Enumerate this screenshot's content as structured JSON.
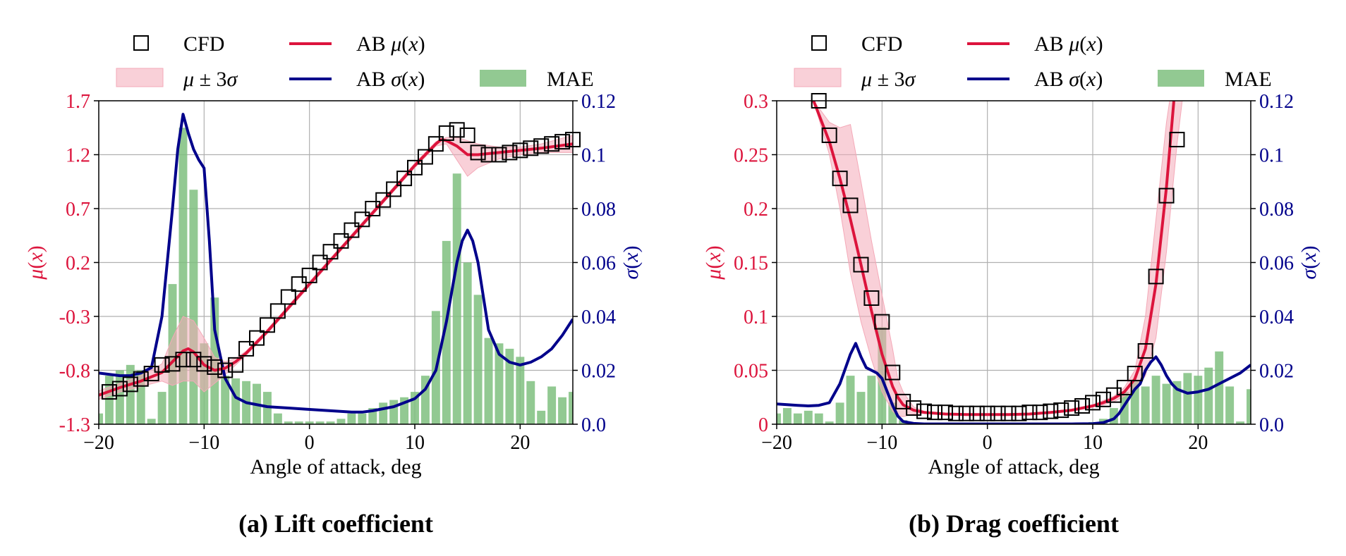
{
  "colors": {
    "mu": "#DC143C",
    "sigma": "#00008B",
    "band": "#F4A9B8",
    "mae": "#7FBF7F",
    "cfd": "#000000",
    "grid": "#b0b0b0"
  },
  "legend": {
    "cfd": "CFD",
    "band": "μ ± 3σ",
    "ab_mu": "AB μ(x)",
    "ab_sigma": "AB σ(x)",
    "mae": "MAE"
  },
  "chart_data": [
    {
      "type": "line",
      "caption": "(a) Lift coefficient",
      "xlabel": "Angle of attack, deg",
      "ylabel_left": "μ(x)",
      "ylabel_right": "σ(x)",
      "xlim": [
        -20,
        25
      ],
      "ylim_left": [
        -1.3,
        1.7
      ],
      "ylim_right": [
        0,
        0.12
      ],
      "xticks": [
        -20,
        -10,
        0,
        10,
        20
      ],
      "xtick_labels": [
        "−20",
        "−10",
        "0",
        "10",
        "20"
      ],
      "yticks_left": [
        -1.3,
        -0.8,
        -0.3,
        0.2,
        0.7,
        1.2,
        1.7
      ],
      "ytick_labels_left": [
        "-1.3",
        "-0.8",
        "-0.3",
        "0.2",
        "0.7",
        "1.2",
        "1.7"
      ],
      "yticks_right": [
        0,
        0.02,
        0.04,
        0.06,
        0.08,
        0.1,
        0.12
      ],
      "ytick_labels_right": [
        "0.0",
        "0.02",
        "0.04",
        "0.06",
        "0.08",
        "0.1",
        "0.12"
      ],
      "grid": true,
      "legend_position": "top",
      "series": [
        {
          "name": "CFD",
          "kind": "markers",
          "axis": "left",
          "x": [
            -19,
            -18,
            -17,
            -16,
            -15,
            -14,
            -13,
            -12,
            -11,
            -10,
            -9,
            -8,
            -7,
            -6,
            -5,
            -4,
            -3,
            -2,
            -1,
            0,
            1,
            2,
            3,
            4,
            5,
            6,
            7,
            8,
            9,
            10,
            11,
            12,
            13,
            14,
            15,
            16,
            17,
            18,
            19,
            20,
            21,
            22,
            23,
            24,
            25
          ],
          "y": [
            -1.0,
            -0.97,
            -0.93,
            -0.88,
            -0.83,
            -0.75,
            -0.74,
            -0.7,
            -0.7,
            -0.74,
            -0.77,
            -0.8,
            -0.75,
            -0.6,
            -0.5,
            -0.38,
            -0.25,
            -0.12,
            0.0,
            0.08,
            0.2,
            0.3,
            0.4,
            0.5,
            0.6,
            0.7,
            0.78,
            0.88,
            0.98,
            1.08,
            1.18,
            1.3,
            1.4,
            1.43,
            1.38,
            1.22,
            1.2,
            1.2,
            1.22,
            1.24,
            1.26,
            1.28,
            1.3,
            1.32,
            1.34
          ]
        },
        {
          "name": "AB μ(x)",
          "kind": "line",
          "axis": "left",
          "x": [
            -20,
            -18,
            -16,
            -14,
            -13,
            -12,
            -11.5,
            -11,
            -10,
            -9,
            -8,
            -7,
            -6,
            -4,
            -2,
            0,
            2,
            4,
            6,
            8,
            10,
            11,
            12,
            12.5,
            13,
            14,
            15,
            16,
            18,
            20,
            22,
            25
          ],
          "y": [
            -1.03,
            -0.96,
            -0.9,
            -0.82,
            -0.72,
            -0.62,
            -0.6,
            -0.63,
            -0.75,
            -0.8,
            -0.78,
            -0.72,
            -0.64,
            -0.44,
            -0.22,
            0.0,
            0.22,
            0.44,
            0.66,
            0.88,
            1.1,
            1.2,
            1.3,
            1.34,
            1.33,
            1.28,
            1.2,
            1.2,
            1.22,
            1.24,
            1.26,
            1.3
          ]
        },
        {
          "name": "μ ± 3σ upper",
          "kind": "band_upper",
          "axis": "left",
          "x": [
            -20,
            -18,
            -16,
            -14,
            -13,
            -12,
            -11,
            -10,
            -9,
            -8,
            -7,
            -6,
            -4,
            -2,
            0,
            2,
            4,
            6,
            8,
            10,
            11,
            12,
            13,
            14,
            15,
            16,
            18,
            20,
            22,
            25
          ],
          "y": [
            -0.99,
            -0.92,
            -0.85,
            -0.74,
            -0.5,
            -0.3,
            -0.34,
            -0.5,
            -0.68,
            -0.72,
            -0.69,
            -0.62,
            -0.42,
            -0.2,
            0.02,
            0.24,
            0.46,
            0.68,
            0.9,
            1.12,
            1.22,
            1.32,
            1.36,
            1.36,
            1.33,
            1.3,
            1.27,
            1.27,
            1.3,
            1.38
          ]
        },
        {
          "name": "μ ± 3σ lower",
          "kind": "band_lower",
          "axis": "left",
          "x": [
            -20,
            -18,
            -16,
            -14,
            -13,
            -12,
            -11,
            -10,
            -9,
            -8,
            -7,
            -6,
            -4,
            -2,
            0,
            2,
            4,
            6,
            8,
            10,
            11,
            12,
            13,
            14,
            15,
            16,
            18,
            20,
            22,
            25
          ],
          "y": [
            -1.07,
            -1.0,
            -0.95,
            -0.9,
            -0.94,
            -0.9,
            -0.9,
            -1.0,
            -0.92,
            -0.84,
            -0.75,
            -0.66,
            -0.46,
            -0.24,
            -0.02,
            0.2,
            0.42,
            0.64,
            0.86,
            1.08,
            1.18,
            1.28,
            1.3,
            1.15,
            1.0,
            1.08,
            1.16,
            1.2,
            1.22,
            1.22
          ]
        },
        {
          "name": "AB σ(x)",
          "kind": "line",
          "axis": "right",
          "x": [
            -20,
            -18,
            -17,
            -16,
            -15,
            -14,
            -13,
            -12.5,
            -12,
            -11.5,
            -11,
            -10.5,
            -10,
            -9.5,
            -9,
            -8,
            -7,
            -6,
            -4,
            -2,
            0,
            2,
            4,
            5,
            6,
            8,
            10,
            11,
            12,
            13,
            14,
            14.5,
            15,
            15.5,
            16,
            17,
            18,
            19,
            20,
            21,
            22,
            23,
            24,
            25
          ],
          "y": [
            0.019,
            0.018,
            0.018,
            0.019,
            0.021,
            0.04,
            0.08,
            0.102,
            0.115,
            0.108,
            0.102,
            0.098,
            0.095,
            0.068,
            0.035,
            0.017,
            0.01,
            0.008,
            0.0065,
            0.006,
            0.0055,
            0.005,
            0.0045,
            0.0045,
            0.005,
            0.0065,
            0.0095,
            0.013,
            0.02,
            0.038,
            0.06,
            0.068,
            0.072,
            0.068,
            0.06,
            0.035,
            0.026,
            0.023,
            0.022,
            0.023,
            0.025,
            0.028,
            0.033,
            0.039
          ]
        },
        {
          "name": "MAE",
          "kind": "bars",
          "axis": "right",
          "x": [
            -20,
            -19,
            -18,
            -17,
            -16,
            -15,
            -14,
            -13,
            -12,
            -11,
            -10,
            -9,
            -8,
            -7,
            -6,
            -5,
            -4,
            -3,
            -2,
            -1,
            0,
            1,
            2,
            3,
            4,
            5,
            6,
            7,
            8,
            9,
            10,
            11,
            12,
            13,
            14,
            15,
            16,
            17,
            18,
            19,
            20,
            21,
            22,
            23,
            24,
            25
          ],
          "y": [
            0.004,
            0.018,
            0.02,
            0.022,
            0.02,
            0.002,
            0.012,
            0.052,
            0.11,
            0.087,
            0.03,
            0.047,
            0.018,
            0.017,
            0.016,
            0.015,
            0.012,
            0.004,
            0.001,
            0.001,
            0.001,
            0.001,
            0.001,
            0.002,
            0.004,
            0.004,
            0.006,
            0.008,
            0.009,
            0.01,
            0.012,
            0.018,
            0.042,
            0.068,
            0.093,
            0.06,
            0.048,
            0.032,
            0.03,
            0.028,
            0.025,
            0.016,
            0.005,
            0.014,
            0.01,
            0.012
          ]
        }
      ]
    },
    {
      "type": "line",
      "caption": "(b) Drag coefficient",
      "xlabel": "Angle of attack, deg",
      "ylabel_left": "μ(x)",
      "ylabel_right": "σ(x)",
      "xlim": [
        -20,
        25
      ],
      "ylim_left": [
        0,
        0.3
      ],
      "ylim_right": [
        0,
        0.12
      ],
      "xticks": [
        -20,
        -10,
        0,
        10,
        20
      ],
      "xtick_labels": [
        "−20",
        "−10",
        "0",
        "10",
        "20"
      ],
      "yticks_left": [
        0,
        0.05,
        0.1,
        0.15,
        0.2,
        0.25,
        0.3
      ],
      "ytick_labels_left": [
        "0",
        "0.05",
        "0.1",
        "0.15",
        "0.2",
        "0.25",
        "0.3"
      ],
      "yticks_right": [
        0,
        0.02,
        0.04,
        0.06,
        0.08,
        0.1,
        0.12
      ],
      "ytick_labels_right": [
        "0.0",
        "0.02",
        "0.04",
        "0.06",
        "0.08",
        "0.1",
        "0.12"
      ],
      "grid": true,
      "legend_position": "top",
      "series": [
        {
          "name": "CFD",
          "kind": "markers",
          "axis": "left",
          "x": [
            -16,
            -15,
            -14,
            -13,
            -12,
            -11,
            -10,
            -9,
            -8,
            -7,
            -6,
            -5,
            -4,
            -3,
            -2,
            -1,
            0,
            1,
            2,
            3,
            4,
            5,
            6,
            7,
            8,
            9,
            10,
            11,
            12,
            13,
            14,
            15,
            16,
            17,
            18
          ],
          "y": [
            0.3,
            0.268,
            0.228,
            0.203,
            0.148,
            0.117,
            0.095,
            0.048,
            0.021,
            0.015,
            0.012,
            0.011,
            0.011,
            0.01,
            0.01,
            0.01,
            0.01,
            0.01,
            0.01,
            0.01,
            0.011,
            0.011,
            0.012,
            0.013,
            0.015,
            0.017,
            0.02,
            0.023,
            0.027,
            0.034,
            0.047,
            0.068,
            0.137,
            0.212,
            0.264
          ]
        },
        {
          "name": "AB μ(x)",
          "kind": "line",
          "axis": "left",
          "x": [
            -16.5,
            -15,
            -14,
            -13,
            -12,
            -11,
            -10,
            -9,
            -8.5,
            -8,
            -7,
            -6,
            -4,
            -2,
            0,
            2,
            4,
            6,
            8,
            10,
            11,
            12,
            13,
            14,
            15,
            16,
            17,
            17.7
          ],
          "y": [
            0.3,
            0.262,
            0.228,
            0.19,
            0.148,
            0.105,
            0.065,
            0.035,
            0.025,
            0.018,
            0.013,
            0.011,
            0.0095,
            0.009,
            0.009,
            0.009,
            0.0095,
            0.011,
            0.013,
            0.017,
            0.02,
            0.024,
            0.03,
            0.042,
            0.07,
            0.13,
            0.22,
            0.3
          ]
        },
        {
          "name": "μ ± 3σ upper",
          "kind": "band_upper",
          "axis": "left",
          "x": [
            -16.5,
            -15,
            -14,
            -13,
            -12,
            -11,
            -10,
            -9,
            -8.5,
            -8,
            -7,
            -6,
            -4,
            -2,
            0,
            2,
            4,
            6,
            8,
            10,
            11,
            12,
            13,
            14,
            15,
            16,
            17,
            17.3
          ],
          "y": [
            0.3,
            0.28,
            0.275,
            0.278,
            0.225,
            0.17,
            0.12,
            0.07,
            0.042,
            0.03,
            0.016,
            0.012,
            0.0097,
            0.0092,
            0.0092,
            0.0092,
            0.0097,
            0.0112,
            0.0135,
            0.018,
            0.022,
            0.026,
            0.034,
            0.05,
            0.1,
            0.19,
            0.28,
            0.3
          ]
        },
        {
          "name": "μ ± 3σ lower",
          "kind": "band_lower",
          "axis": "left",
          "x": [
            -16.5,
            -15,
            -14,
            -13,
            -12,
            -11,
            -10,
            -9,
            -8.5,
            -8,
            -7,
            -6,
            -4,
            -2,
            0,
            2,
            4,
            6,
            8,
            10,
            11,
            12,
            13,
            14,
            15,
            16,
            17,
            18,
            18.5
          ],
          "y": [
            0.3,
            0.25,
            0.2,
            0.14,
            0.095,
            0.06,
            0.03,
            0.012,
            0.008,
            0.007,
            0.0095,
            0.01,
            0.0093,
            0.0088,
            0.0088,
            0.0088,
            0.0093,
            0.0108,
            0.0125,
            0.016,
            0.018,
            0.021,
            0.026,
            0.032,
            0.045,
            0.08,
            0.16,
            0.26,
            0.3
          ]
        },
        {
          "name": "AB σ(x)",
          "kind": "line",
          "axis": "right",
          "x": [
            -20,
            -18,
            -17,
            -16,
            -15,
            -14,
            -13,
            -12.5,
            -12,
            -11.5,
            -11,
            -10.5,
            -10,
            -9.5,
            -9,
            -8.5,
            -8,
            -7,
            -6,
            -4,
            -2,
            0,
            2,
            4,
            6,
            8,
            10,
            11,
            12,
            12.5,
            13,
            13.5,
            14,
            14.5,
            15,
            15.5,
            16,
            16.5,
            17,
            17.5,
            18,
            19,
            20,
            21,
            22,
            23,
            24,
            25
          ],
          "y": [
            0.0075,
            0.007,
            0.0068,
            0.007,
            0.008,
            0.015,
            0.026,
            0.03,
            0.025,
            0.021,
            0.02,
            0.019,
            0.017,
            0.012,
            0.007,
            0.003,
            0.001,
            0.0003,
            0.0001,
            0.0001,
            0.0001,
            0.0001,
            0.0001,
            0.0001,
            0.0001,
            0.0001,
            0.0002,
            0.0006,
            0.002,
            0.004,
            0.007,
            0.01,
            0.013,
            0.015,
            0.02,
            0.023,
            0.025,
            0.022,
            0.018,
            0.015,
            0.013,
            0.0115,
            0.012,
            0.013,
            0.015,
            0.017,
            0.019,
            0.022
          ]
        },
        {
          "name": "MAE",
          "kind": "bars",
          "axis": "right",
          "x": [
            -20,
            -19,
            -18,
            -17,
            -16,
            -15,
            -14,
            -13,
            -12,
            -11,
            -10,
            -9,
            -8,
            -7,
            -6,
            -5,
            -4,
            -3,
            -2,
            -1,
            0,
            1,
            2,
            3,
            4,
            5,
            6,
            7,
            8,
            9,
            10,
            11,
            12,
            13,
            14,
            15,
            16,
            17,
            18,
            19,
            20,
            21,
            22,
            23,
            24,
            25
          ],
          "y": [
            0.004,
            0.006,
            0.004,
            0.005,
            0.004,
            0.001,
            0.008,
            0.018,
            0.012,
            0.018,
            0.036,
            0.008,
            0.0015,
            0.0005,
            0.0003,
            0.0003,
            0.0002,
            0.0002,
            0.0002,
            0.0002,
            0.0002,
            0.0002,
            0.0002,
            0.0002,
            0.0002,
            0.0002,
            0.0003,
            0.0003,
            0.0004,
            0.0005,
            0.0008,
            0.002,
            0.006,
            0.012,
            0.016,
            0.014,
            0.018,
            0.015,
            0.016,
            0.019,
            0.018,
            0.021,
            0.027,
            0.014,
            0.001,
            0.013
          ]
        }
      ]
    }
  ]
}
